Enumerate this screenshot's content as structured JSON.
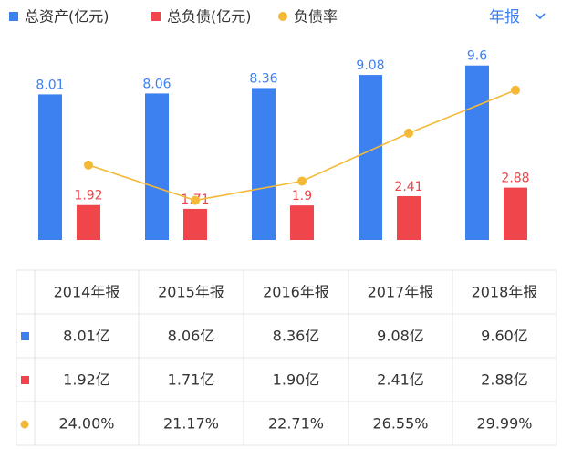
{
  "period_selector": "年报",
  "chart_data": {
    "type": "bar",
    "categories": [
      "2014年报",
      "2015年报",
      "2016年报",
      "2017年报",
      "2018年报"
    ],
    "ylim": [
      0,
      13.2
    ],
    "y2lim": [
      18,
      37.2
    ],
    "series": [
      {
        "name": "总资产(亿元)",
        "color": "#3d80ef",
        "values": [
          8.01,
          8.06,
          8.36,
          9.08,
          9.6
        ],
        "value_labels": [
          "8.01亿",
          "8.06亿",
          "8.36亿",
          "9.08亿",
          "9.60亿"
        ]
      },
      {
        "name": "总负债(亿元)",
        "color": "#f0454b",
        "values": [
          1.92,
          1.71,
          1.9,
          2.41,
          2.88
        ],
        "value_labels": [
          "1.92亿",
          "1.71亿",
          "1.90亿",
          "2.41亿",
          "2.88亿"
        ]
      },
      {
        "name": "负债率",
        "type": "line",
        "axis": "y2",
        "color": "#f5b938",
        "values": [
          24.0,
          21.17,
          22.71,
          26.55,
          29.99
        ],
        "value_labels": [
          "24.00%",
          "21.17%",
          "22.71%",
          "26.55%",
          "29.99%"
        ]
      }
    ]
  }
}
